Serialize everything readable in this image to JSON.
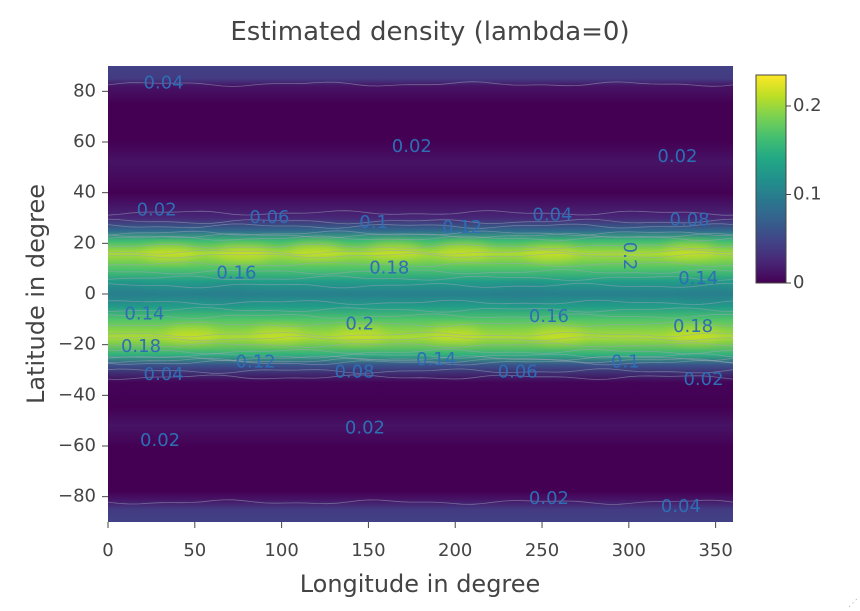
{
  "chart_data": {
    "type": "heatmap",
    "title": "Estimated density (lambda=0)",
    "xlabel": "Longitude in degree",
    "ylabel": "Latitude in degree",
    "xlim": [
      0,
      360
    ],
    "ylim": [
      -90,
      90
    ],
    "x_ticks": [
      0,
      50,
      100,
      150,
      200,
      250,
      300,
      350
    ],
    "x_tick_labels": [
      "0",
      "50",
      "100",
      "150",
      "200",
      "250",
      "300",
      "350"
    ],
    "y_ticks": [
      80,
      60,
      40,
      20,
      0,
      -20,
      -40,
      -60,
      -80
    ],
    "y_tick_labels": [
      "80",
      "60",
      "40",
      "20",
      "0",
      "−20",
      "−40",
      "−60",
      "−80"
    ],
    "colorscale": "Viridis",
    "colorbar": {
      "range": [
        0,
        0.235
      ],
      "ticks": [
        0,
        0.1,
        0.2
      ],
      "tick_labels": [
        "0",
        "0.1",
        "0.2"
      ]
    },
    "density_profile": {
      "lat": [
        -90,
        -85,
        -81,
        -78,
        -72,
        -60,
        -52,
        -45,
        -35,
        -28,
        -24,
        -17,
        -10,
        -5,
        0,
        5,
        10,
        16,
        21,
        25,
        30,
        40,
        52,
        60,
        75,
        82,
        85,
        90
      ],
      "density": [
        0.045,
        0.04,
        0.012,
        0.0,
        0.0,
        0.0,
        0.012,
        0.0,
        0.002,
        0.06,
        0.15,
        0.205,
        0.17,
        0.13,
        0.1,
        0.13,
        0.17,
        0.205,
        0.16,
        0.08,
        0.025,
        0.0,
        0.012,
        0.0,
        0.0,
        0.012,
        0.04,
        0.045
      ]
    },
    "contour_levels": [
      0.02,
      0.04,
      0.06,
      0.08,
      0.1,
      0.12,
      0.14,
      0.16,
      0.18,
      0.2
    ],
    "contour_labels": [
      {
        "text": "0.04",
        "lon": 32,
        "lat": 83
      },
      {
        "text": "0.02",
        "lon": 175,
        "lat": 58
      },
      {
        "text": "0.02",
        "lon": 328,
        "lat": 54
      },
      {
        "text": "0.02",
        "lon": 28,
        "lat": 33
      },
      {
        "text": "0.06",
        "lon": 93,
        "lat": 30
      },
      {
        "text": "0.1",
        "lon": 153,
        "lat": 28
      },
      {
        "text": "0.12",
        "lon": 204,
        "lat": 26
      },
      {
        "text": "0.04",
        "lon": 256,
        "lat": 31
      },
      {
        "text": "0.08",
        "lon": 335,
        "lat": 29
      },
      {
        "text": "0.2",
        "lon": 300,
        "lat": 15,
        "rotate": 90
      },
      {
        "text": "0.16",
        "lon": 74,
        "lat": 8
      },
      {
        "text": "0.18",
        "lon": 162,
        "lat": 10
      },
      {
        "text": "0.14",
        "lon": 340,
        "lat": 6
      },
      {
        "text": "0.14",
        "lon": 21,
        "lat": -8
      },
      {
        "text": "0.2",
        "lon": 145,
        "lat": -12
      },
      {
        "text": "0.16",
        "lon": 254,
        "lat": -9
      },
      {
        "text": "0.18",
        "lon": 337,
        "lat": -13
      },
      {
        "text": "0.18",
        "lon": 19,
        "lat": -21
      },
      {
        "text": "0.12",
        "lon": 85,
        "lat": -27
      },
      {
        "text": "0.08",
        "lon": 142,
        "lat": -31
      },
      {
        "text": "0.14",
        "lon": 189,
        "lat": -26
      },
      {
        "text": "0.06",
        "lon": 236,
        "lat": -31
      },
      {
        "text": "0.1",
        "lon": 298,
        "lat": -27
      },
      {
        "text": "0.04",
        "lon": 32,
        "lat": -32
      },
      {
        "text": "0.02",
        "lon": 343,
        "lat": -34
      },
      {
        "text": "0.02",
        "lon": 30,
        "lat": -58
      },
      {
        "text": "0.02",
        "lon": 148,
        "lat": -53
      },
      {
        "text": "0.02",
        "lon": 254,
        "lat": -81
      },
      {
        "text": "0.04",
        "lon": 330,
        "lat": -84
      }
    ]
  },
  "ui": {
    "resize_glyph": "⋰"
  }
}
